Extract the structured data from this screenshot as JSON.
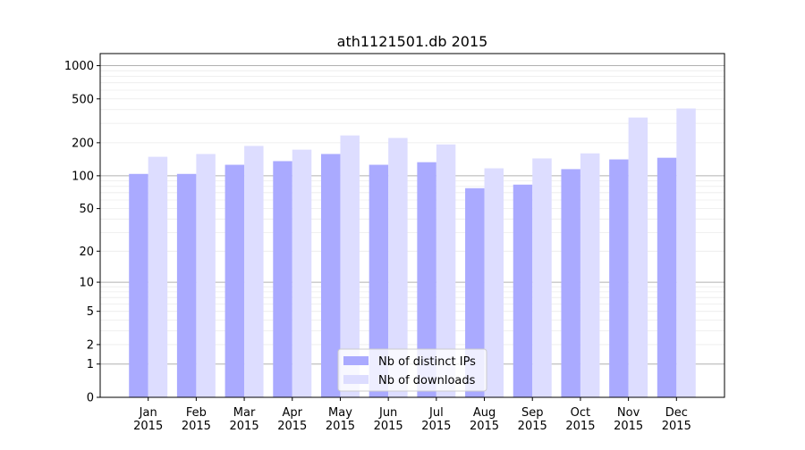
{
  "chart_data": {
    "type": "bar",
    "title": "ath1121501.db 2015",
    "xlabel": "",
    "ylabel": "",
    "yscale": "symlog",
    "ylim": [
      0,
      1270
    ],
    "yticks": [
      0,
      1,
      2,
      5,
      10,
      20,
      50,
      100,
      200,
      500,
      1000
    ],
    "grid": true,
    "legend_position": "lower center",
    "categories": [
      "Jan\n2015",
      "Feb\n2015",
      "Mar\n2015",
      "Apr\n2015",
      "May\n2015",
      "Jun\n2015",
      "Jul\n2015",
      "Aug\n2015",
      "Sep\n2015",
      "Oct\n2015",
      "Nov\n2015",
      "Dec\n2015"
    ],
    "series": [
      {
        "name": "Nb of distinct IPs",
        "color": "#aaaaff",
        "values": [
          104,
          104,
          126,
          136,
          158,
          126,
          133,
          77,
          83,
          115,
          141,
          146
        ]
      },
      {
        "name": "Nb of downloads",
        "color": "#ddddff",
        "values": [
          149,
          158,
          187,
          173,
          233,
          221,
          193,
          117,
          144,
          160,
          339,
          409
        ]
      }
    ]
  }
}
